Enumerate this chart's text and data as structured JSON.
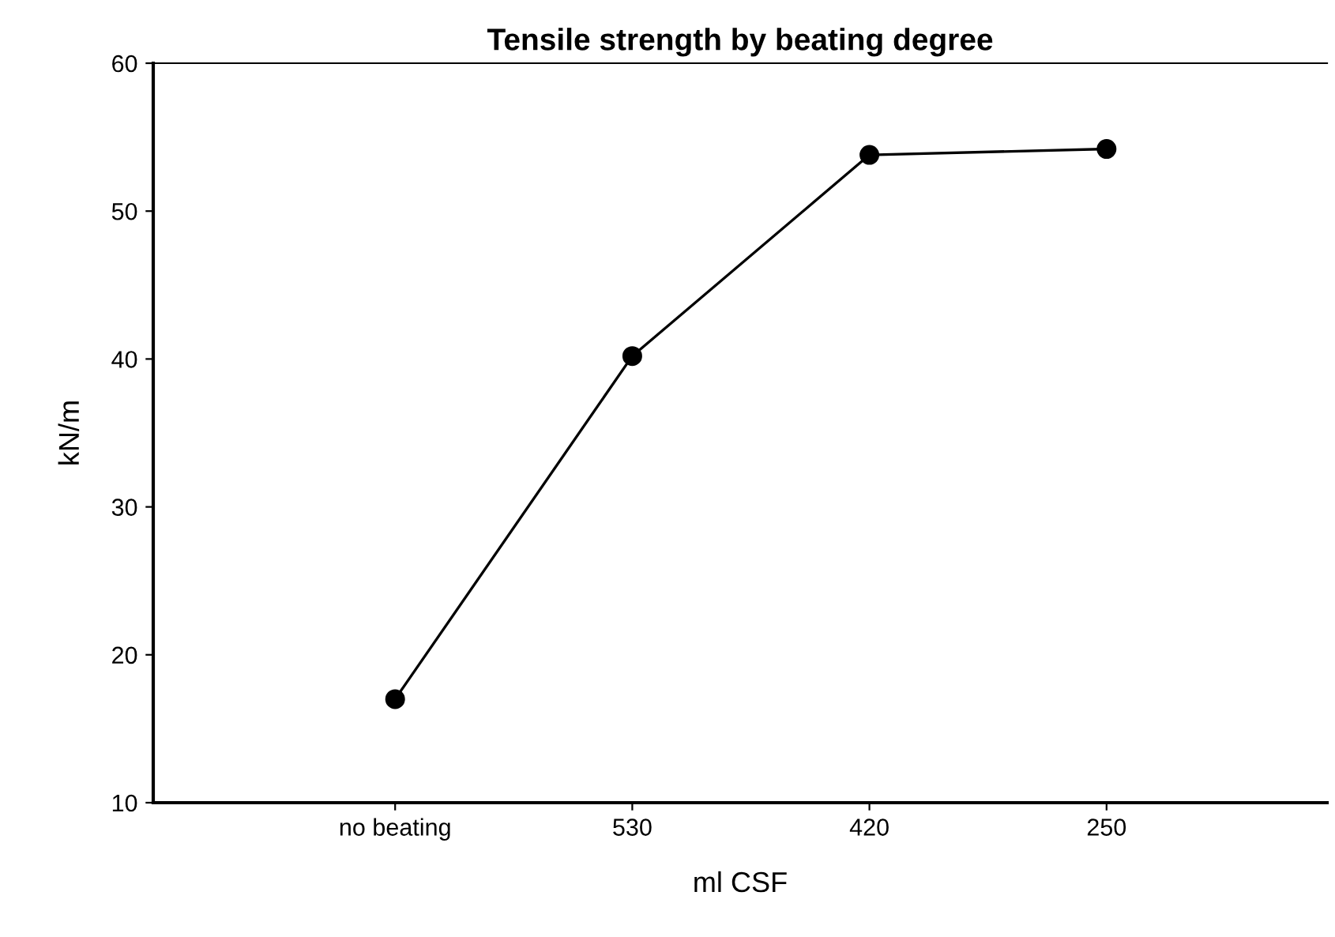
{
  "chart_data": {
    "type": "line",
    "title": "Tensile strength by beating degree",
    "xlabel": "ml CSF",
    "ylabel": "kN/m",
    "categories": [
      "no beating",
      "530",
      "420",
      "250"
    ],
    "series": [
      {
        "color": "#000000",
        "values": [
          17.0,
          40.2,
          53.8,
          54.2
        ]
      }
    ],
    "ylim": [
      10,
      60
    ],
    "yticks": [
      10,
      20,
      30,
      40,
      50,
      60
    ],
    "grid": false,
    "legend": false,
    "marker": "circle",
    "line_style": "solid"
  }
}
